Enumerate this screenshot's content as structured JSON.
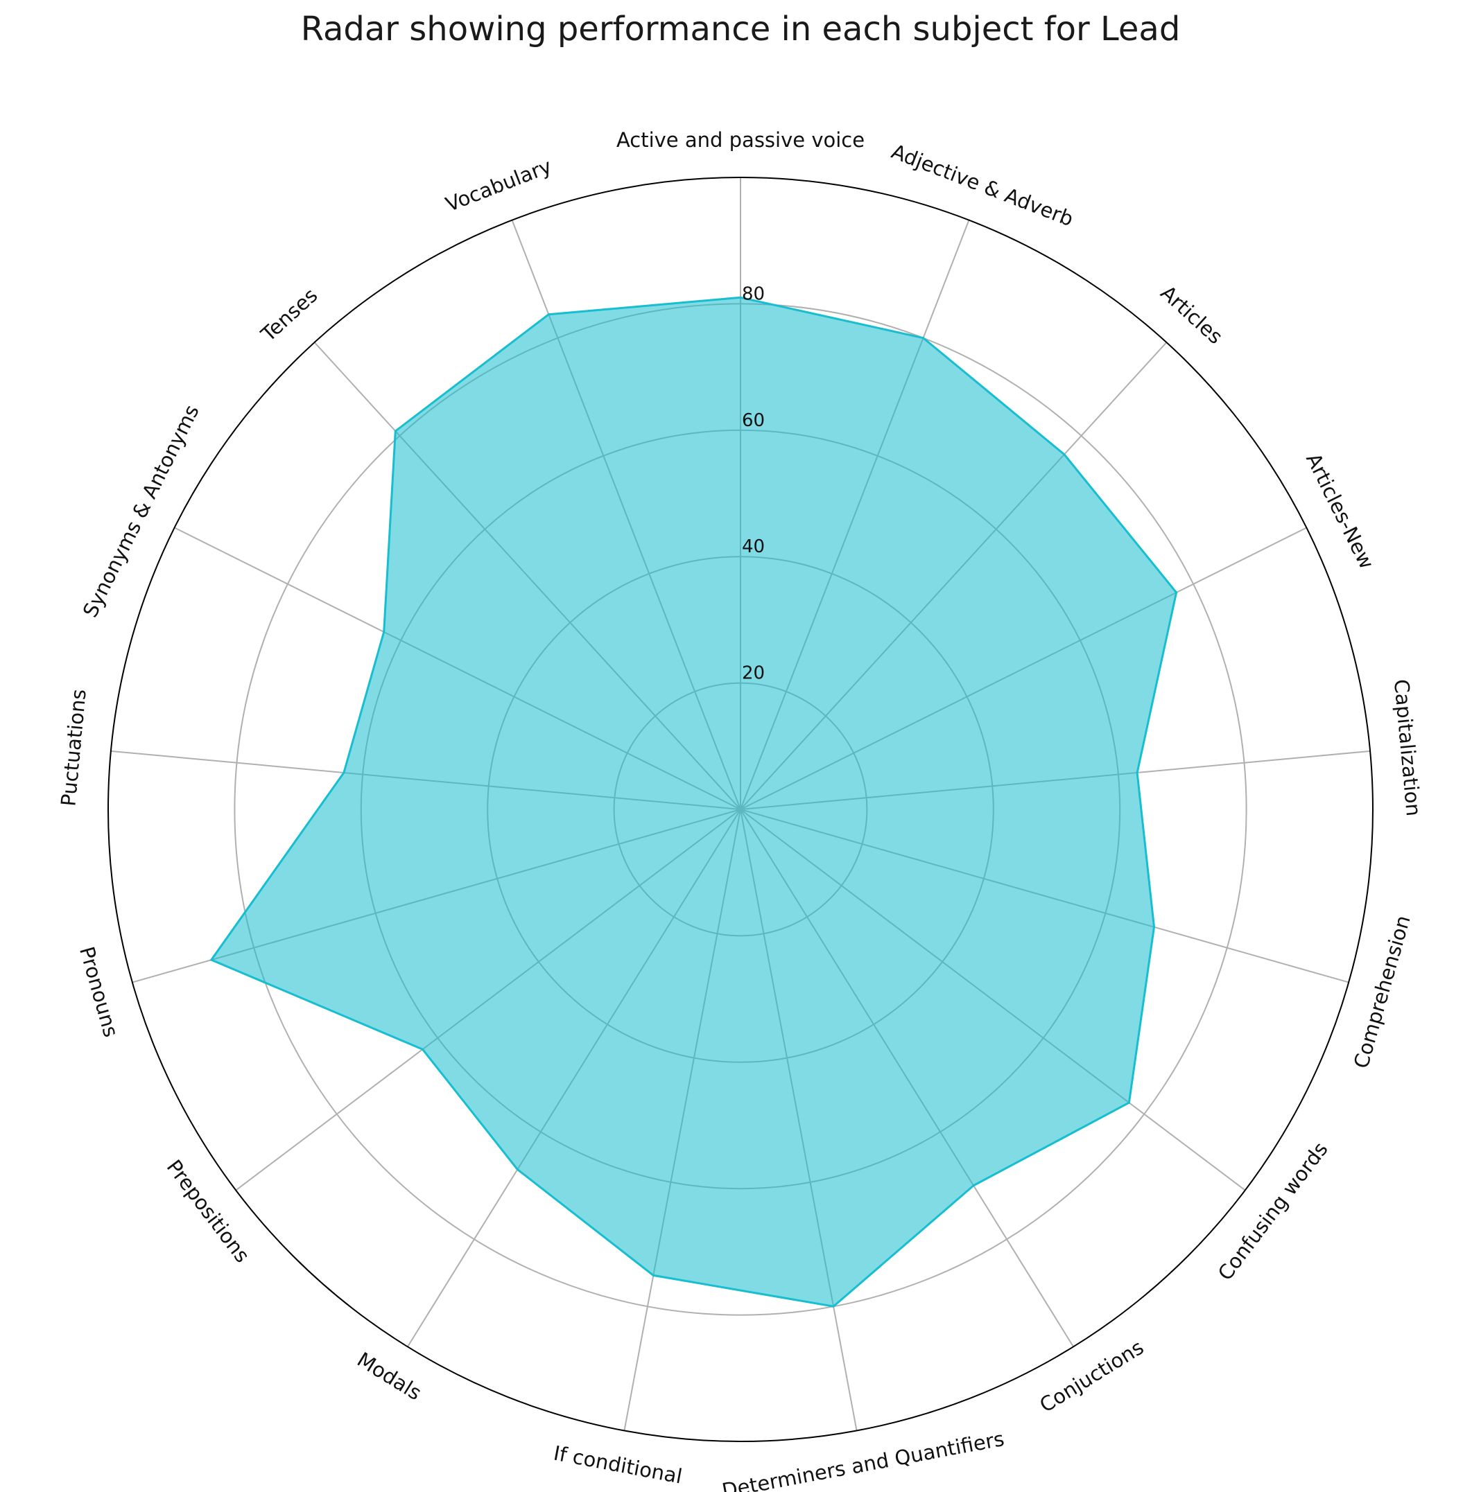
{
  "chart_data": {
    "type": "radar",
    "title": "Radar showing performance in each subject for Lead",
    "categories": [
      "Active and passive voice",
      "Adjective & Adverb",
      "Articles",
      "Articles-New",
      "Capitalization",
      "Comprehension",
      "Confusing words",
      "Conjuctions",
      "Determiners and Quantifiers",
      "If conditional",
      "Modals",
      "Prepositions",
      "Pronouns",
      "Puctuations",
      "Synonyms & Antonyms",
      "Tenses",
      "Vocabulary"
    ],
    "values": [
      81,
      80,
      76,
      77,
      63,
      68,
      77,
      70,
      80,
      75,
      67,
      63,
      87,
      63,
      63,
      81,
      84
    ],
    "rlim": [
      0,
      100
    ],
    "rticks": [
      20,
      40,
      60,
      80
    ],
    "rtick_labels": [
      "20",
      "40",
      "60",
      "80"
    ],
    "grid": true,
    "colors": {
      "line": "#17becf",
      "fill": "#17becf",
      "fill_opacity": 0.55,
      "grid": "#b0b0b0"
    }
  }
}
